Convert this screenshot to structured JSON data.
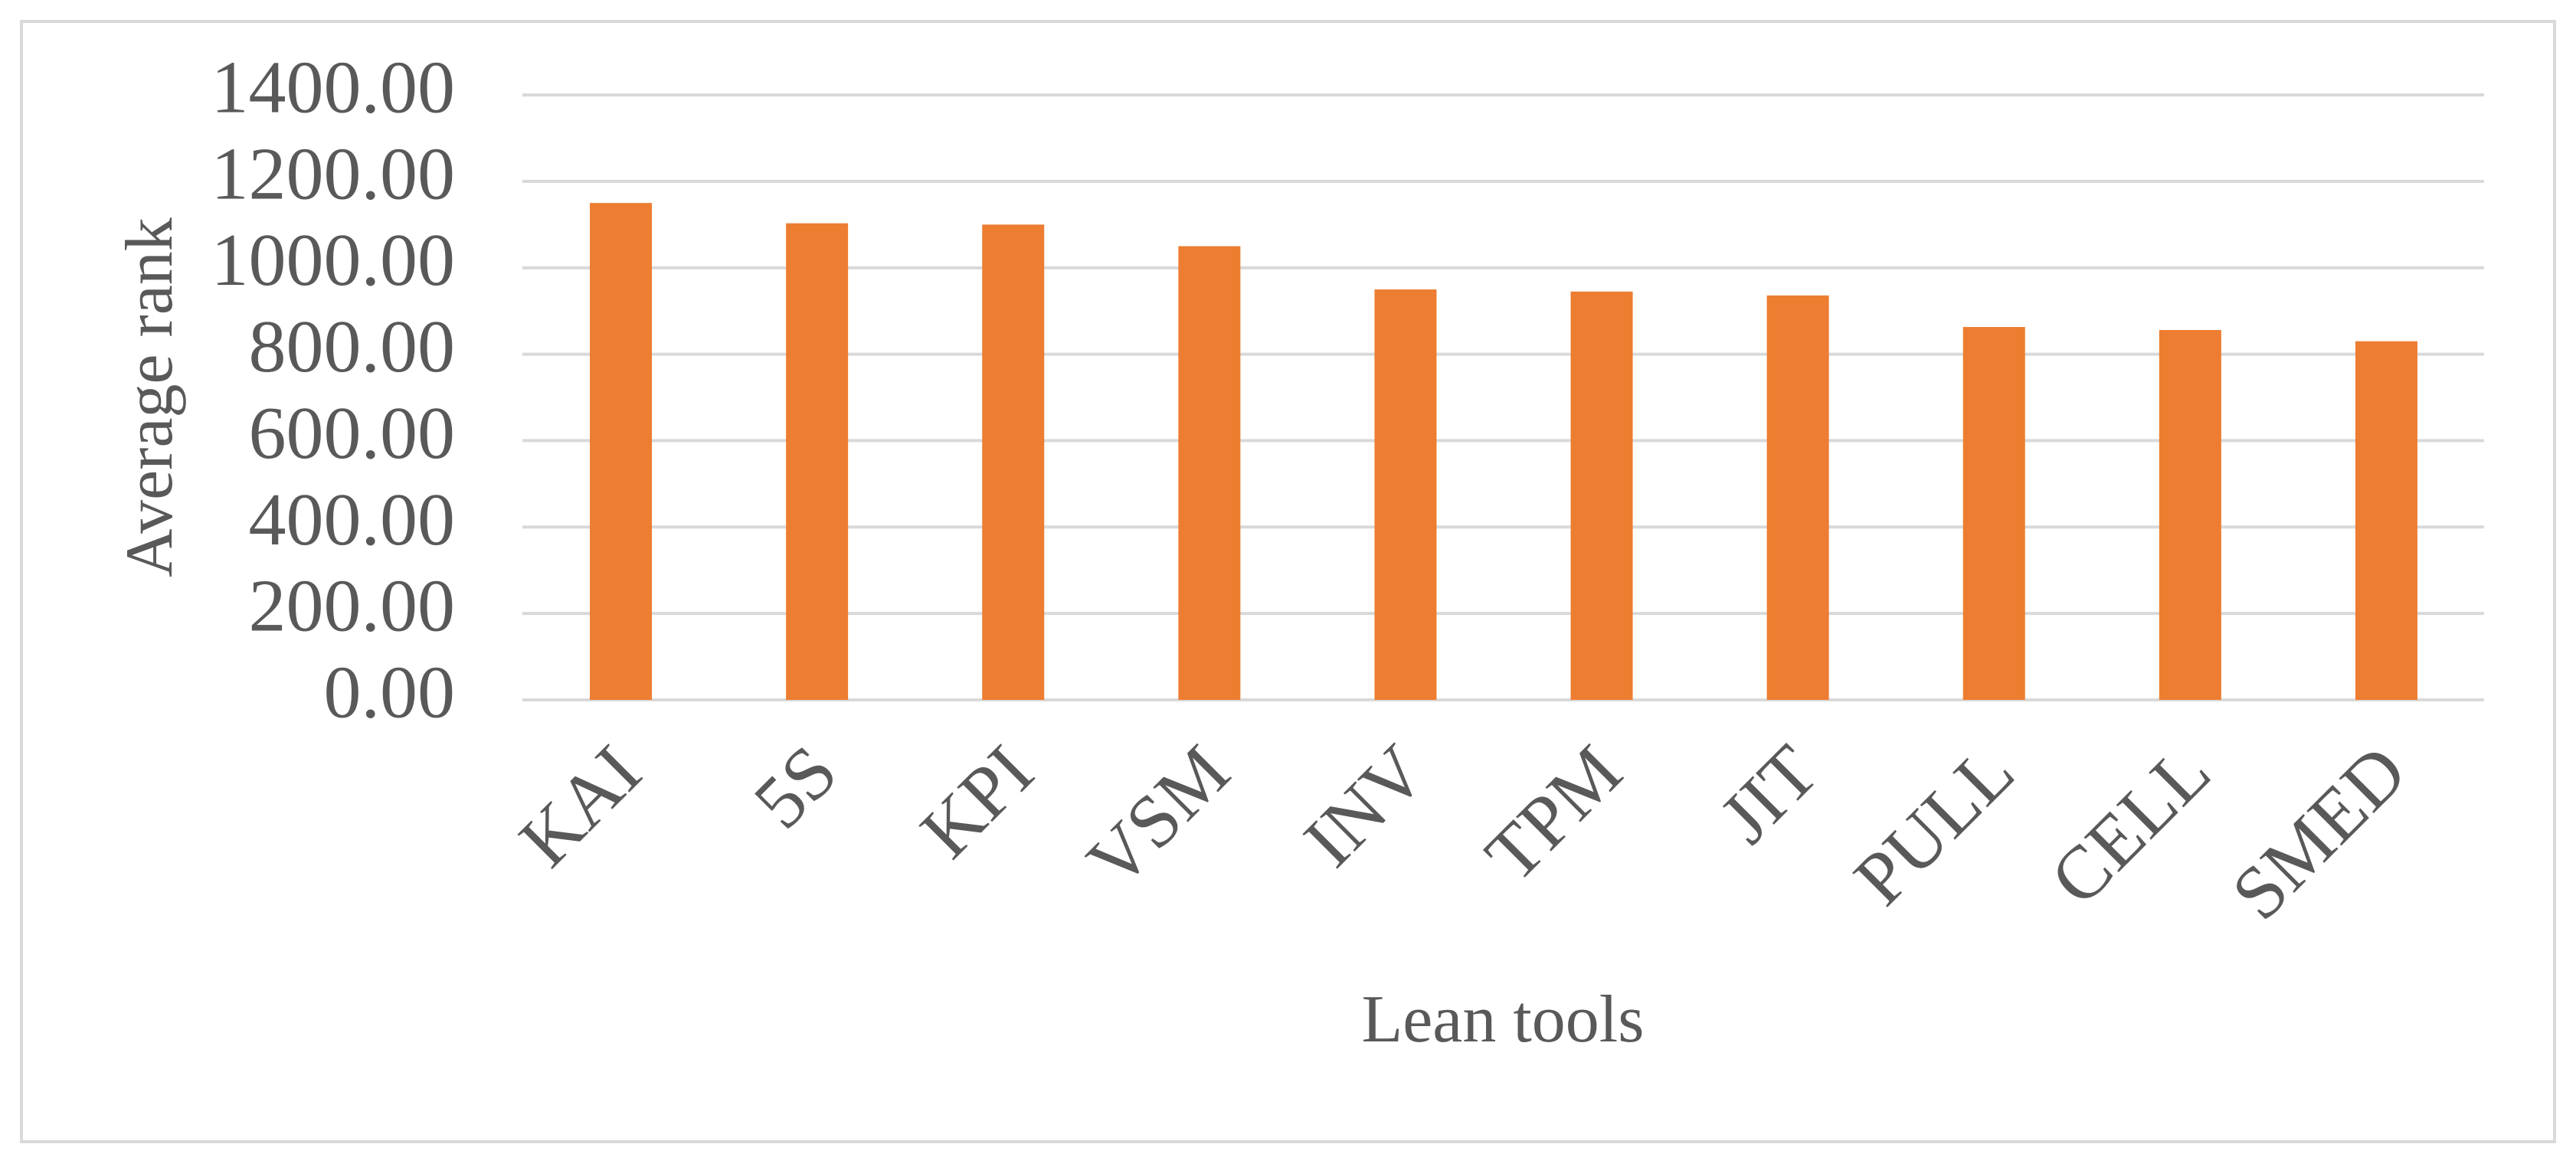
{
  "chart_data": {
    "type": "bar",
    "x_label": "Lean tools",
    "y_label": "Average rank",
    "categories": [
      "KAI",
      "5S",
      "KPI",
      "VSM",
      "INV",
      "TPM",
      "JIT",
      "PULL",
      "CELL",
      "SMED"
    ],
    "values": [
      1150,
      1103,
      1100,
      1050,
      950,
      945,
      936,
      863,
      856,
      830
    ],
    "color": "#ed7d31",
    "ylim": [
      0,
      1400
    ],
    "yticks": [
      {
        "value": 0,
        "label": "0.00"
      },
      {
        "value": 200,
        "label": "200.00"
      },
      {
        "value": 400,
        "label": "400.00"
      },
      {
        "value": 600,
        "label": "600.00"
      },
      {
        "value": 800,
        "label": "800.00"
      },
      {
        "value": 1000,
        "label": "1000.00"
      },
      {
        "value": 1200,
        "label": "1200.00"
      },
      {
        "value": 1400,
        "label": "1400.00"
      }
    ],
    "grid": true
  }
}
